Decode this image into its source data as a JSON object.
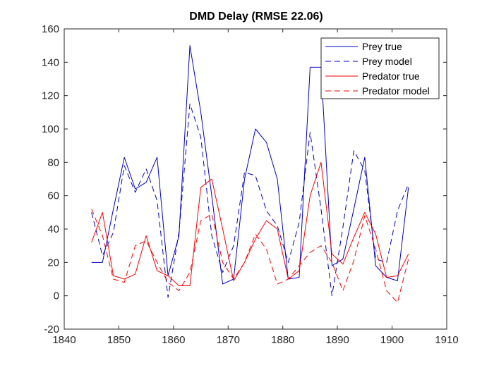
{
  "chart_data": {
    "type": "line",
    "title": "DMD Delay (RMSE 22.06)",
    "xlabel": "",
    "ylabel": "",
    "xlim": [
      1840,
      1910
    ],
    "ylim": [
      -20,
      160
    ],
    "xticks": [
      1840,
      1850,
      1860,
      1870,
      1880,
      1890,
      1900,
      1910
    ],
    "yticks": [
      -20,
      0,
      20,
      40,
      60,
      80,
      100,
      120,
      140,
      160
    ],
    "grid": false,
    "legend_position": "top-right",
    "x": [
      1845,
      1847,
      1849,
      1851,
      1853,
      1855,
      1857,
      1859,
      1861,
      1863,
      1865,
      1867,
      1869,
      1871,
      1873,
      1875,
      1877,
      1879,
      1881,
      1883,
      1885,
      1887,
      1889,
      1891,
      1893,
      1895,
      1897,
      1899,
      1901,
      1903
    ],
    "series": [
      {
        "name": "Prey true",
        "color": "#0000CC",
        "dash": "solid",
        "values": [
          20,
          20,
          52,
          83,
          64,
          68,
          83,
          12,
          36,
          150,
          110,
          60,
          7,
          10,
          70,
          100,
          92,
          70,
          10,
          11,
          137,
          137,
          18,
          22,
          52,
          83,
          18,
          11,
          9,
          65
        ]
      },
      {
        "name": "Prey model",
        "color": "#0000CC",
        "dash": "dashed",
        "values": [
          50,
          24,
          38,
          78,
          62,
          76,
          57,
          -1,
          38,
          115,
          95,
          36,
          14,
          30,
          74,
          72,
          51,
          42,
          20,
          44,
          98,
          52,
          0,
          41,
          87,
          75,
          22,
          20,
          51,
          67
        ]
      },
      {
        "name": "Predator true",
        "color": "#FF0000",
        "dash": "solid",
        "values": [
          32,
          50,
          12,
          10,
          13,
          36,
          15,
          12,
          6,
          6,
          65,
          70,
          40,
          9,
          20,
          34,
          45,
          40,
          10,
          15,
          60,
          80,
          25,
          19,
          35,
          50,
          37,
          11,
          12,
          25
        ]
      },
      {
        "name": "Predator model",
        "color": "#FF0000",
        "dash": "dashed",
        "values": [
          52,
          36,
          10,
          8,
          30,
          33,
          20,
          8,
          3,
          14,
          45,
          49,
          20,
          10,
          20,
          37,
          28,
          7,
          10,
          18,
          26,
          30,
          20,
          3,
          21,
          48,
          28,
          3,
          -4,
          22
        ]
      }
    ]
  }
}
